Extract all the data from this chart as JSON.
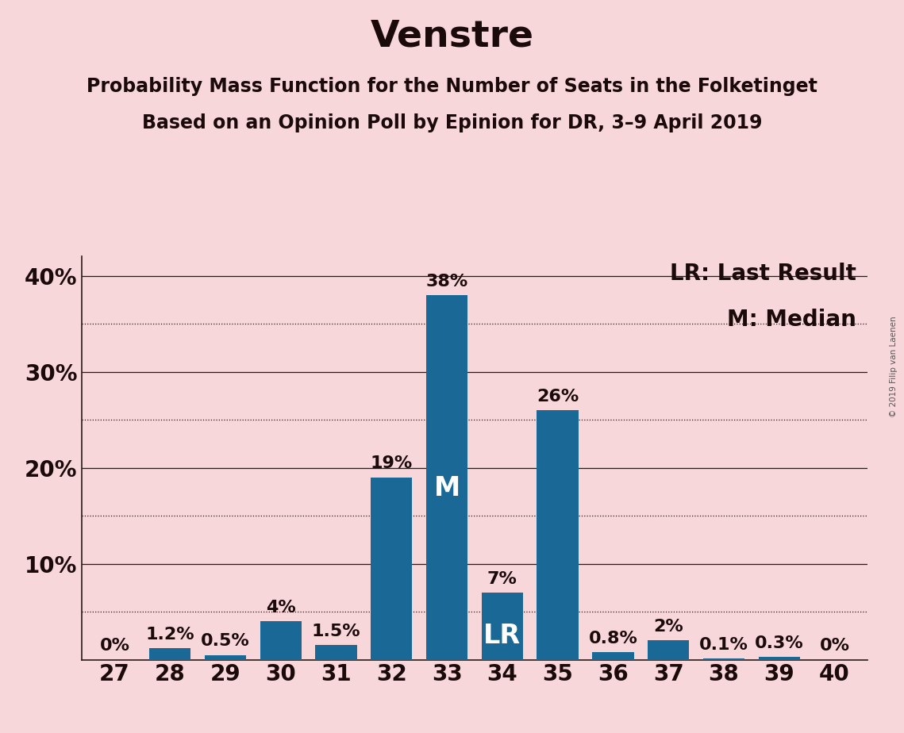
{
  "title": "Venstre",
  "subtitle1": "Probability Mass Function for the Number of Seats in the Folketinget",
  "subtitle2": "Based on an Opinion Poll by Epinion for DR, 3–9 April 2019",
  "watermark": "© 2019 Filip van Laenen",
  "categories": [
    27,
    28,
    29,
    30,
    31,
    32,
    33,
    34,
    35,
    36,
    37,
    38,
    39,
    40
  ],
  "values": [
    0.0,
    1.2,
    0.5,
    4.0,
    1.5,
    19.0,
    38.0,
    7.0,
    26.0,
    0.8,
    2.0,
    0.1,
    0.3,
    0.0
  ],
  "labels": [
    "0%",
    "1.2%",
    "0.5%",
    "4%",
    "1.5%",
    "19%",
    "38%",
    "7%",
    "26%",
    "0.8%",
    "2%",
    "0.1%",
    "0.3%",
    "0%"
  ],
  "bar_color": "#1a6896",
  "background_color": "#f8d7da",
  "median_bar": 33,
  "lr_bar": 34,
  "legend_lr": "LR: Last Result",
  "legend_m": "M: Median",
  "ylim": [
    0,
    42
  ],
  "major_yticks": [
    10,
    20,
    30,
    40
  ],
  "major_ytick_labels": [
    "10%",
    "20%",
    "30%",
    "40%"
  ],
  "minor_yticks": [
    5,
    15,
    25,
    35
  ],
  "title_fontsize": 34,
  "subtitle_fontsize": 17,
  "tick_fontsize": 20,
  "legend_fontsize": 20,
  "bar_label_fontsize": 16,
  "inner_label_fontsize": 24,
  "text_color": "#1a0a0a"
}
